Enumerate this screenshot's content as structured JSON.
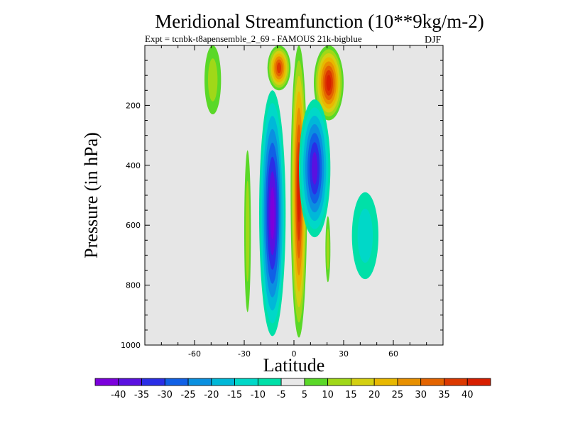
{
  "chart_data": {
    "type": "contour",
    "title": "Meridional Streamfunction (10**9kg/m-2)",
    "subtitle": "Expt = tcnbk-t8apensemble_2_69 - FAMOUS 21k-bigblue",
    "season": "DJF",
    "xlabel": "Latitude",
    "ylabel": "Pressure (in hPa)",
    "xlim": [
      -90,
      90
    ],
    "ylim": [
      1000,
      0
    ],
    "x_ticks": [
      -60,
      -30,
      0,
      30,
      60
    ],
    "x_tick_labels": [
      "-60",
      "-30",
      "0",
      "30",
      "60"
    ],
    "y_ticks": [
      200,
      400,
      600,
      800,
      1000
    ],
    "y_tick_labels": [
      "200",
      "400",
      "600",
      "800",
      "1000"
    ],
    "colorbar": {
      "labels": [
        "-40",
        "-35",
        "-30",
        "-25",
        "-20",
        "-15",
        "-10",
        "-5",
        "5",
        "10",
        "15",
        "20",
        "25",
        "30",
        "35",
        "40"
      ],
      "colors": [
        "#7b00dc",
        "#5a10e0",
        "#2a2ee6",
        "#1060e6",
        "#0a90e0",
        "#00b8d8",
        "#00d8c8",
        "#00e0a8",
        "#e8e8e8",
        "#5ad828",
        "#a0d818",
        "#d4d010",
        "#e8b800",
        "#e89000",
        "#e46400",
        "#dc3800",
        "#d81e00"
      ]
    },
    "cells": [
      {
        "name": "cell-nh-high-positive",
        "lat": [
          12,
          30
        ],
        "p": [
          0,
          250
        ],
        "peak": 40
      },
      {
        "name": "cell-equatorial-positive",
        "lat": [
          -2,
          8
        ],
        "p": [
          0,
          975
        ],
        "peak": 40
      },
      {
        "name": "cell-sh-high-positive",
        "lat": [
          -16,
          -2
        ],
        "p": [
          0,
          150
        ],
        "peak": 35
      },
      {
        "name": "cell-sh-midlat-positive",
        "lat": [
          -54,
          -44
        ],
        "p": [
          0,
          230
        ],
        "peak": 10
      },
      {
        "name": "cell-sh-tropical-negative",
        "lat": [
          -21,
          -5
        ],
        "p": [
          150,
          970
        ],
        "peak": -40
      },
      {
        "name": "cell-nh-tropical-negative",
        "lat": [
          3,
          22
        ],
        "p": [
          180,
          640
        ],
        "peak": -35
      },
      {
        "name": "cell-sh-subtropical-positive",
        "lat": [
          -30,
          -26
        ],
        "p": [
          350,
          890
        ],
        "peak": 10
      },
      {
        "name": "cell-nh-subtropical-positive",
        "lat": [
          19,
          22
        ],
        "p": [
          570,
          790
        ],
        "peak": 10
      },
      {
        "name": "cell-nh-ferrel-negative",
        "lat": [
          35,
          51
        ],
        "p": [
          490,
          780
        ],
        "peak": -10
      }
    ]
  }
}
